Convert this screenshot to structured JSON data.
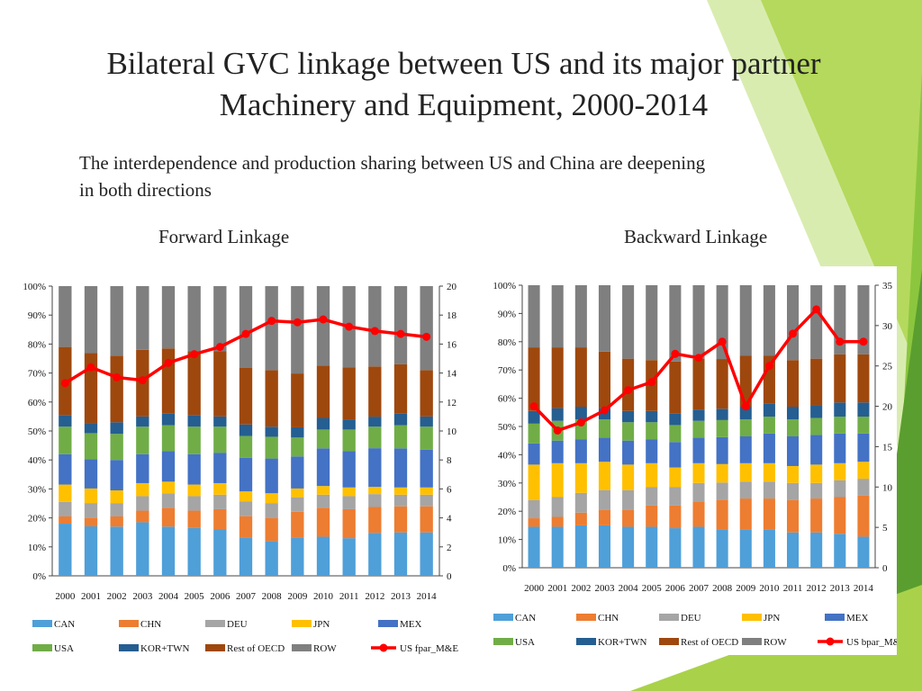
{
  "title_line1": "Bilateral GVC linkage between US and its major partner",
  "title_line2": "Machinery and Equipment, 2000-2014",
  "subtitle_line1": "The interdependence and production sharing between US and China are deepening",
  "subtitle_line2": "in both directions",
  "forward_title": "Forward Linkage",
  "backward_title": "Backward Linkage",
  "colors": {
    "CAN": "#4f9fd9",
    "CHN": "#ed7d31",
    "DEU": "#a5a5a5",
    "JPN": "#ffc000",
    "MEX": "#4472c4",
    "USA": "#70ad47",
    "KOR+TWN": "#255e91",
    "Rest of OECD": "#9e480e",
    "ROW": "#7f7f7f",
    "line": "#ff0000",
    "bg_green_light": "#a9d24a",
    "bg_green_dark": "#5a9e2f"
  },
  "chart_data": [
    {
      "type": "bar",
      "stacked": true,
      "categories": [
        "2000",
        "2001",
        "2002",
        "2003",
        "2004",
        "2005",
        "2006",
        "2007",
        "2008",
        "2009",
        "2010",
        "2011",
        "2012",
        "2013",
        "2014"
      ],
      "y_ticks": [
        "0%",
        "10%",
        "20%",
        "30%",
        "40%",
        "50%",
        "60%",
        "70%",
        "80%",
        "90%",
        "100%"
      ],
      "y2_ticks": [
        "0",
        "2",
        "4",
        "6",
        "8",
        "10",
        "12",
        "14",
        "16",
        "18",
        "20"
      ],
      "ylim": [
        0,
        100
      ],
      "y2lim": [
        0,
        20
      ],
      "series": [
        {
          "name": "CAN",
          "values": [
            18,
            17,
            17,
            18.5,
            17,
            16.5,
            16,
            13,
            12,
            13,
            13.5,
            13,
            15,
            15,
            15
          ]
        },
        {
          "name": "CHN",
          "values": [
            2.5,
            3,
            3.5,
            4,
            6.5,
            6,
            7,
            7.5,
            8,
            9,
            10,
            10,
            9,
            9,
            9
          ]
        },
        {
          "name": "DEU",
          "values": [
            5,
            5,
            4.5,
            5,
            5,
            5,
            5,
            5,
            5,
            5,
            4.5,
            4.5,
            4.5,
            4,
            4
          ]
        },
        {
          "name": "JPN",
          "values": [
            6,
            5,
            4.5,
            4.5,
            4,
            4,
            4,
            3.5,
            3.5,
            3,
            3,
            3,
            2.5,
            2.5,
            2.5
          ]
        },
        {
          "name": "MEX",
          "values": [
            10.5,
            10,
            10.5,
            10,
            10.5,
            10.5,
            10.5,
            11.5,
            12,
            11,
            13,
            12.5,
            13.5,
            13.5,
            13
          ]
        },
        {
          "name": "USA",
          "values": [
            9.5,
            9,
            9,
            9.5,
            9,
            9.5,
            9,
            7.5,
            7.5,
            6.5,
            6.5,
            7.5,
            7.5,
            8,
            8
          ]
        },
        {
          "name": "KOR+TWN",
          "values": [
            4,
            3.5,
            4,
            3.5,
            4,
            4,
            3.5,
            4,
            3.5,
            3.5,
            4,
            3.5,
            3.5,
            4,
            3.5
          ]
        },
        {
          "name": "Rest of OECD",
          "values": [
            23.5,
            24,
            23,
            23,
            22.5,
            22,
            22.5,
            19.5,
            19.5,
            18.5,
            18,
            18,
            17.5,
            17,
            16
          ]
        },
        {
          "name": "ROW",
          "values": [
            21,
            23,
            24,
            22,
            21.5,
            22.5,
            22.5,
            28,
            29,
            30,
            27.5,
            28,
            28,
            27,
            29
          ]
        }
      ],
      "line": {
        "name": "US fpar_M&E",
        "axis": "secondary",
        "values": [
          13.3,
          14.4,
          13.7,
          13.5,
          14.7,
          15.3,
          15.8,
          16.7,
          17.6,
          17.5,
          17.7,
          17.2,
          16.9,
          16.7,
          16.5
        ]
      }
    },
    {
      "type": "bar",
      "stacked": true,
      "categories": [
        "2000",
        "2001",
        "2002",
        "2003",
        "2004",
        "2005",
        "2006",
        "2007",
        "2008",
        "2009",
        "2010",
        "2011",
        "2012",
        "2013",
        "2014"
      ],
      "y_ticks": [
        "0%",
        "10%",
        "20%",
        "30%",
        "40%",
        "50%",
        "60%",
        "70%",
        "80%",
        "90%",
        "100%"
      ],
      "y2_ticks": [
        "0",
        "5",
        "10",
        "15",
        "20",
        "25",
        "30",
        "35"
      ],
      "ylim": [
        0,
        100
      ],
      "y2lim": [
        0,
        35
      ],
      "series": [
        {
          "name": "CAN",
          "values": [
            14.5,
            14.5,
            15,
            15,
            14.5,
            14.5,
            14,
            14.5,
            13.5,
            13.5,
            13.5,
            12.5,
            12.5,
            12,
            11
          ]
        },
        {
          "name": "CHN",
          "values": [
            3,
            3.5,
            4.5,
            5.5,
            6,
            7.5,
            8,
            9,
            10.5,
            11,
            11,
            11.5,
            12,
            13,
            14.5
          ]
        },
        {
          "name": "DEU",
          "values": [
            6.5,
            7,
            7,
            7,
            7,
            6.5,
            6.5,
            6.5,
            6,
            6,
            6,
            6,
            5.5,
            6,
            6
          ]
        },
        {
          "name": "JPN",
          "values": [
            12.5,
            12,
            10.5,
            10,
            9,
            8.5,
            7,
            7,
            6.5,
            6.5,
            6.5,
            6,
            6.5,
            6,
            6
          ]
        },
        {
          "name": "MEX",
          "values": [
            7.5,
            8,
            8.5,
            8.5,
            8.5,
            8.5,
            9,
            9,
            9.5,
            9.5,
            10.5,
            10.5,
            10.5,
            10.5,
            10
          ]
        },
        {
          "name": "USA",
          "values": [
            7,
            7,
            7,
            6.5,
            6.5,
            6,
            6,
            6,
            6,
            6,
            6,
            6,
            6,
            6,
            6
          ]
        },
        {
          "name": "KOR+TWN",
          "values": [
            4.5,
            4.5,
            4.5,
            4,
            4,
            4,
            4,
            4,
            4,
            4.5,
            4.5,
            4.5,
            4.5,
            5,
            5
          ]
        },
        {
          "name": "Rest of OECD",
          "values": [
            22.5,
            21.5,
            21,
            20,
            18.5,
            18,
            18.5,
            18,
            17.5,
            18,
            17,
            16.5,
            16.5,
            17,
            17
          ]
        },
        {
          "name": "ROW",
          "values": [
            22,
            22,
            22,
            23.5,
            26,
            26.5,
            27,
            26,
            26,
            25,
            25,
            26.5,
            26,
            24.5,
            24.5
          ]
        }
      ],
      "line": {
        "name": "US bpar_M&E",
        "axis": "secondary",
        "values": [
          20,
          17,
          18,
          19.5,
          22,
          23,
          26.5,
          26,
          28,
          20,
          25,
          29,
          32,
          28,
          28
        ]
      }
    }
  ]
}
